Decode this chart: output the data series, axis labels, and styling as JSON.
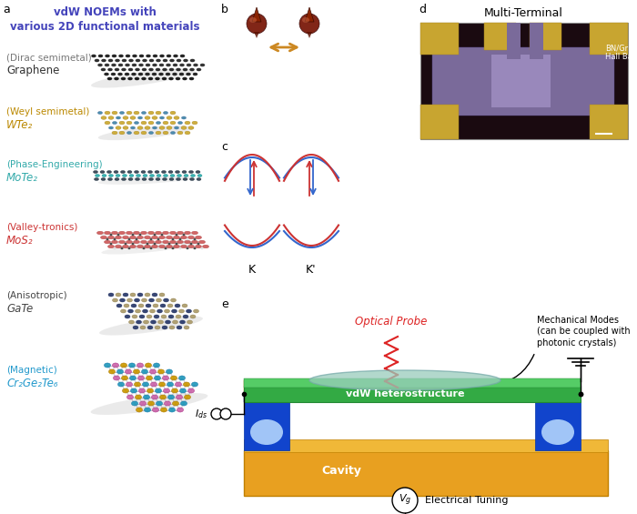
{
  "panel_a_title": "vdW NOEMs with\nvarious 2D functional materials",
  "panel_a_title_color": "#4444bb",
  "panel_a_items": [
    {
      "label1": "(Dirac semimetal)",
      "label2": "Graphene",
      "color1": "#777777",
      "color2": "#333333"
    },
    {
      "label1": "(Weyl semimetal)",
      "label2": "WTe₂",
      "color1": "#bb8800",
      "color2": "#bb8800"
    },
    {
      "label1": "(Phase-Engineering)",
      "label2": "MoTe₂",
      "color1": "#33aaaa",
      "color2": "#33aaaa"
    },
    {
      "label1": "(Valley-tronics)",
      "label2": "MoS₂",
      "color1": "#cc3333",
      "color2": "#cc3333"
    },
    {
      "label1": "(Anisotropic)",
      "label2": "GaTe",
      "color1": "#444444",
      "color2": "#444444"
    },
    {
      "label1": "(Magnetic)",
      "label2": "Cr₂Ge₂Te₆",
      "color1": "#2299cc",
      "color2": "#2299cc"
    }
  ],
  "panel_d_title": "Multi-Terminal",
  "panel_d_label": "BN/Gr\nHall Bar",
  "optical_probe_label": "Optical Probe",
  "mechanical_modes_label": "Mechanical Modes\n(can be coupled with\nphotonic crystals)",
  "vdw_label": "vdW heterostructure",
  "cavity_label": "Cavity",
  "electrical_label": "Electrical Tuning",
  "bg_color": "#ffffff",
  "gold_color": "#e8a020",
  "blue_dark": "#1133bb",
  "green_color": "#33aa44",
  "teal_color": "#99ccbb",
  "red_color": "#dd2222",
  "orange_color": "#cc8822"
}
